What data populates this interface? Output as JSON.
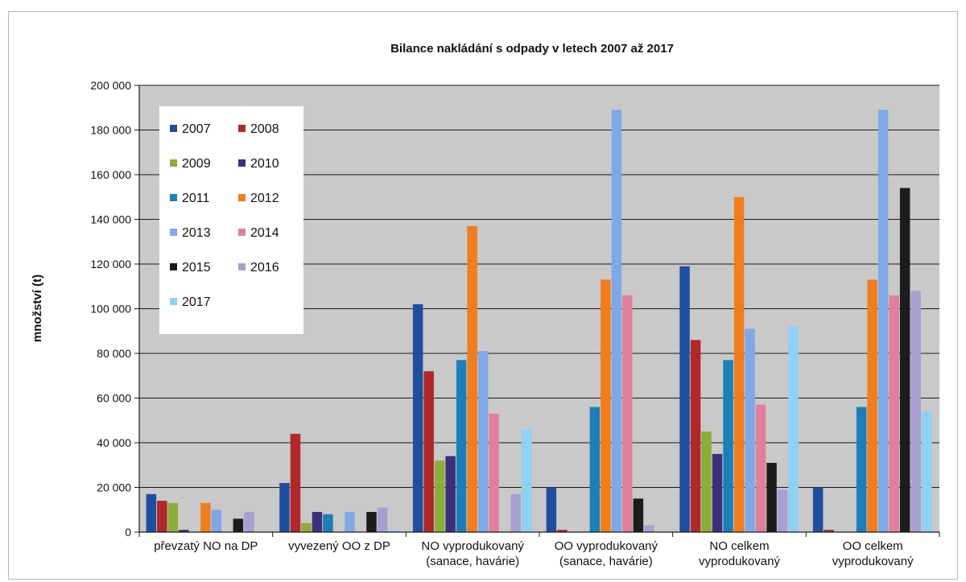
{
  "chart_data": {
    "type": "bar",
    "title": "Bilance nakládání s odpady v letech 2007 až 2017",
    "xlabel": "",
    "ylabel": "množství (t)",
    "ylim": [
      0,
      200000
    ],
    "yticks": [
      0,
      20000,
      40000,
      60000,
      80000,
      100000,
      120000,
      140000,
      160000,
      180000,
      200000
    ],
    "ytick_labels": [
      "0",
      "20 000",
      "40 000",
      "60 000",
      "80 000",
      "100 000",
      "120 000",
      "140 000",
      "160 000",
      "180 000",
      "200 000"
    ],
    "grid": true,
    "legend_position": "top-left",
    "categories": [
      [
        "převzatý NO na DP"
      ],
      [
        "vyvezený OO z DP"
      ],
      [
        "NO vyprodukovaný",
        "(sanace, havárie)"
      ],
      [
        "OO vyprodukovaný",
        "(sanace, havárie)"
      ],
      [
        "NO celkem",
        "vyprodukovaný"
      ],
      [
        "OO celkem",
        "vyprodukovaný"
      ]
    ],
    "series": [
      {
        "name": "2007",
        "color": "#1f4e9e",
        "values": [
          17000,
          22000,
          102000,
          20000,
          119000,
          20000
        ]
      },
      {
        "name": "2008",
        "color": "#b0282a",
        "values": [
          14000,
          44000,
          72000,
          1000,
          86000,
          1000
        ]
      },
      {
        "name": "2009",
        "color": "#8cad3a",
        "values": [
          13000,
          4000,
          32000,
          0,
          45000,
          0
        ]
      },
      {
        "name": "2010",
        "color": "#3b2f7a",
        "values": [
          1000,
          9000,
          34000,
          0,
          35000,
          0
        ]
      },
      {
        "name": "2011",
        "color": "#1c7fb8",
        "values": [
          0,
          8000,
          77000,
          56000,
          77000,
          56000
        ]
      },
      {
        "name": "2012",
        "color": "#f07d1e",
        "values": [
          13000,
          0,
          137000,
          113000,
          150000,
          113000
        ]
      },
      {
        "name": "2013",
        "color": "#7fa8e6",
        "values": [
          10000,
          9000,
          81000,
          189000,
          91000,
          189000
        ]
      },
      {
        "name": "2014",
        "color": "#e07f9b",
        "values": [
          0,
          0,
          53000,
          106000,
          57000,
          106000
        ]
      },
      {
        "name": "2015",
        "color": "#1c1c1c",
        "values": [
          6000,
          9000,
          0,
          15000,
          31000,
          154000
        ]
      },
      {
        "name": "2016",
        "color": "#a99fd0",
        "values": [
          9000,
          11000,
          17000,
          3000,
          19000,
          108000
        ]
      },
      {
        "name": "2017",
        "color": "#8fd1f3",
        "values": [
          0,
          1000,
          46000,
          0,
          92000,
          54000
        ]
      }
    ]
  }
}
